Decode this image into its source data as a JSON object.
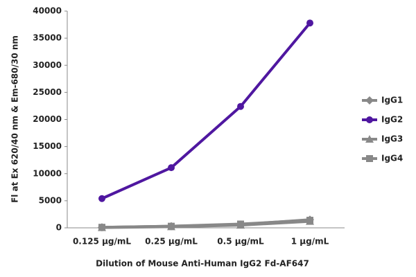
{
  "chart_data": {
    "type": "line",
    "y_label": "Fl at Ex 620/40 nm & Em-680/30 nm",
    "x_label": "Dilution of Mouse Anti-Human IgG2 Fd-AF647",
    "categories": [
      "0.125 µg/mL",
      "0.25 µg/mL",
      "0.5 µg/mL",
      "1 µg/mL"
    ],
    "series": [
      {
        "name": "IgG1",
        "color": "#888888",
        "marker": "diamond",
        "values": [
          100,
          300,
          600,
          1500
        ]
      },
      {
        "name": "IgG2",
        "color": "#4f17a0",
        "marker": "circle",
        "values": [
          5400,
          11100,
          22400,
          37800
        ]
      },
      {
        "name": "IgG3",
        "color": "#888888",
        "marker": "triangle",
        "values": [
          50,
          200,
          500,
          1200
        ]
      },
      {
        "name": "IgG4",
        "color": "#888888",
        "marker": "square",
        "values": [
          100,
          300,
          700,
          1400
        ]
      }
    ],
    "ylim": [
      0,
      40000
    ],
    "yticks": [
      0,
      5000,
      10000,
      15000,
      20000,
      25000,
      30000,
      35000,
      40000
    ],
    "grid": false,
    "legend": "right"
  }
}
